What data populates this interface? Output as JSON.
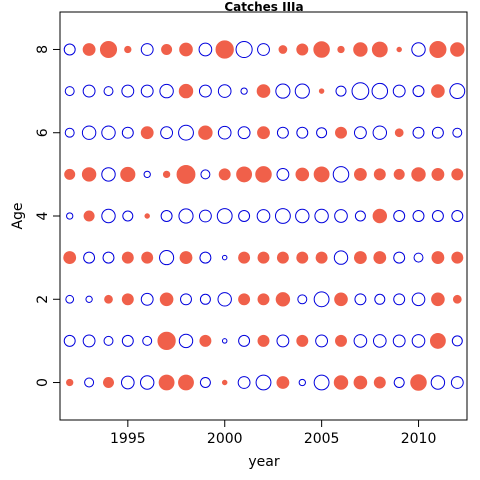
{
  "chart_data": {
    "type": "scatter",
    "subtype": "bubble",
    "title": "Catches IIIa",
    "xlabel": "year",
    "ylabel": "Age",
    "xlim": [
      1991.5,
      2012.5
    ],
    "ylim": [
      -0.9,
      8.9
    ],
    "xticks": [
      1995,
      2000,
      2005,
      2010
    ],
    "yticks": [
      0,
      2,
      4,
      6,
      8
    ],
    "grid": false,
    "legend": "none",
    "colors": {
      "positive": "#f0604a",
      "negative": "#0000dd"
    },
    "encoding": "circle area proportional to |residual|; filled = positive, open = negative",
    "years": [
      1992,
      1993,
      1994,
      1995,
      1996,
      1997,
      1998,
      1999,
      2000,
      2001,
      2002,
      2003,
      2004,
      2005,
      2006,
      2007,
      2008,
      2009,
      2010,
      2011,
      2012
    ],
    "series": [
      {
        "name": "age 0",
        "age": 0,
        "values": [
          0.1,
          -0.2,
          0.25,
          -0.4,
          -0.45,
          0.55,
          0.55,
          -0.25,
          0.05,
          -0.35,
          -0.55,
          0.35,
          -0.1,
          -0.55,
          0.45,
          0.4,
          0.3,
          -0.25,
          0.6,
          -0.45,
          -0.35
        ]
      },
      {
        "name": "age 1",
        "age": 1,
        "values": [
          -0.3,
          -0.35,
          -0.2,
          -0.3,
          -0.2,
          0.75,
          -0.45,
          0.3,
          -0.05,
          -0.3,
          0.3,
          -0.35,
          0.3,
          -0.35,
          0.3,
          -0.4,
          -0.4,
          -0.35,
          -0.4,
          0.55,
          -0.25
        ]
      },
      {
        "name": "age 2",
        "age": 2,
        "values": [
          -0.15,
          -0.1,
          0.15,
          0.3,
          -0.35,
          0.4,
          -0.3,
          -0.25,
          -0.45,
          0.3,
          0.3,
          0.45,
          -0.2,
          -0.55,
          0.4,
          -0.3,
          -0.25,
          -0.3,
          -0.4,
          0.4,
          0.15
        ]
      },
      {
        "name": "age 3",
        "age": 3,
        "values": [
          0.35,
          -0.3,
          -0.3,
          0.3,
          0.3,
          -0.5,
          0.35,
          -0.3,
          -0.05,
          0.3,
          0.3,
          0.3,
          0.3,
          0.3,
          -0.45,
          0.35,
          0.35,
          -0.3,
          -0.2,
          0.35,
          0.3
        ]
      },
      {
        "name": "age 4",
        "age": 4,
        "values": [
          -0.1,
          0.25,
          -0.45,
          -0.25,
          0.05,
          -0.3,
          -0.5,
          -0.35,
          -0.55,
          -0.3,
          -0.4,
          -0.55,
          -0.45,
          -0.45,
          -0.4,
          -0.25,
          0.45,
          -0.3,
          -0.3,
          -0.3,
          -0.3
        ]
      },
      {
        "name": "age 5",
        "age": 5,
        "values": [
          0.25,
          0.45,
          -0.45,
          0.5,
          -0.1,
          0.1,
          0.8,
          -0.2,
          0.3,
          0.55,
          0.6,
          -0.35,
          0.4,
          0.55,
          -0.6,
          0.35,
          0.3,
          0.25,
          0.45,
          0.35,
          0.3
        ]
      },
      {
        "name": "age 6",
        "age": 6,
        "values": [
          -0.2,
          -0.45,
          -0.45,
          -0.3,
          0.35,
          -0.35,
          -0.55,
          0.45,
          -0.4,
          -0.35,
          0.35,
          -0.3,
          -0.3,
          -0.25,
          0.3,
          -0.35,
          -0.45,
          0.15,
          -0.3,
          -0.3,
          -0.2
        ]
      },
      {
        "name": "age 7",
        "age": 7,
        "values": [
          -0.2,
          -0.35,
          -0.2,
          -0.35,
          -0.35,
          -0.45,
          0.45,
          -0.35,
          -0.4,
          -0.1,
          0.4,
          -0.5,
          -0.5,
          0.05,
          -0.25,
          -0.7,
          -0.6,
          -0.35,
          -0.3,
          0.4,
          -0.55
        ]
      },
      {
        "name": "age 8",
        "age": 8,
        "values": [
          -0.3,
          0.35,
          0.65,
          0.1,
          -0.35,
          0.25,
          0.4,
          -0.4,
          0.75,
          -0.65,
          -0.35,
          0.15,
          0.3,
          0.6,
          0.1,
          0.45,
          0.55,
          0.05,
          -0.45,
          0.65,
          0.45
        ]
      }
    ]
  }
}
